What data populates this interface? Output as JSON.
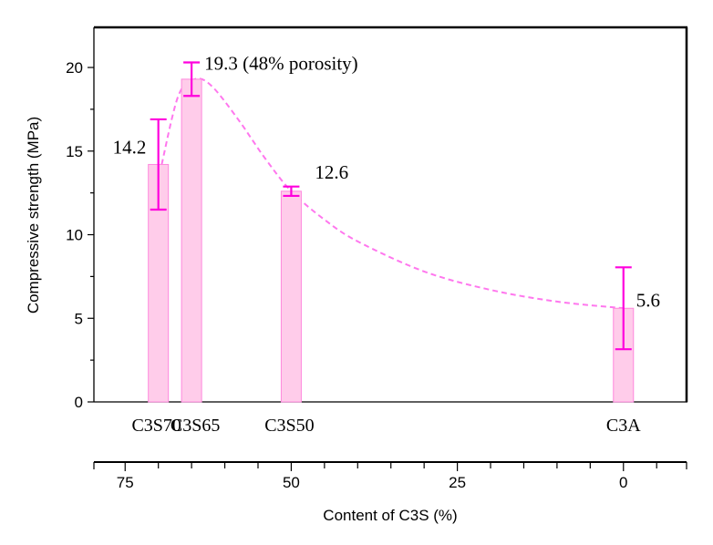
{
  "chart_data": {
    "type": "bar",
    "title": "",
    "ylabel": "Compressive strength (MPa)",
    "xlabel": "Content of C3S (%)",
    "ylim": [
      0,
      22.4
    ],
    "xlim": [
      79.7,
      -9.5
    ],
    "yticks": [
      0,
      5,
      10,
      15,
      20
    ],
    "xticks": [
      75,
      50,
      25,
      0
    ],
    "grid": false,
    "categories": [
      "C3S70",
      "C3S65",
      "C3S50",
      "C3A"
    ],
    "x": [
      70,
      65,
      50,
      0
    ],
    "values": [
      14.2,
      19.3,
      12.6,
      5.6
    ],
    "errors": [
      2.7,
      1.0,
      0.28,
      2.45
    ],
    "data_labels": [
      "14.2",
      "19.3 (48% porosity)",
      "12.6",
      "5.6"
    ],
    "fit_curve": [
      [
        69.5,
        14.2
      ],
      [
        67,
        18.3
      ],
      [
        64.5,
        19.3
      ],
      [
        62,
        18.9
      ],
      [
        58,
        16.9
      ],
      [
        54,
        14.6
      ],
      [
        50,
        12.6
      ],
      [
        45,
        10.9
      ],
      [
        40,
        9.6
      ],
      [
        30,
        7.8
      ],
      [
        20,
        6.7
      ],
      [
        10,
        6.0
      ],
      [
        0,
        5.6
      ]
    ],
    "colors": {
      "bar_fill": "#ffccea",
      "bar_edge": "#ff88dd",
      "error": "#ff00dd",
      "curve": "#ff77ee"
    }
  }
}
